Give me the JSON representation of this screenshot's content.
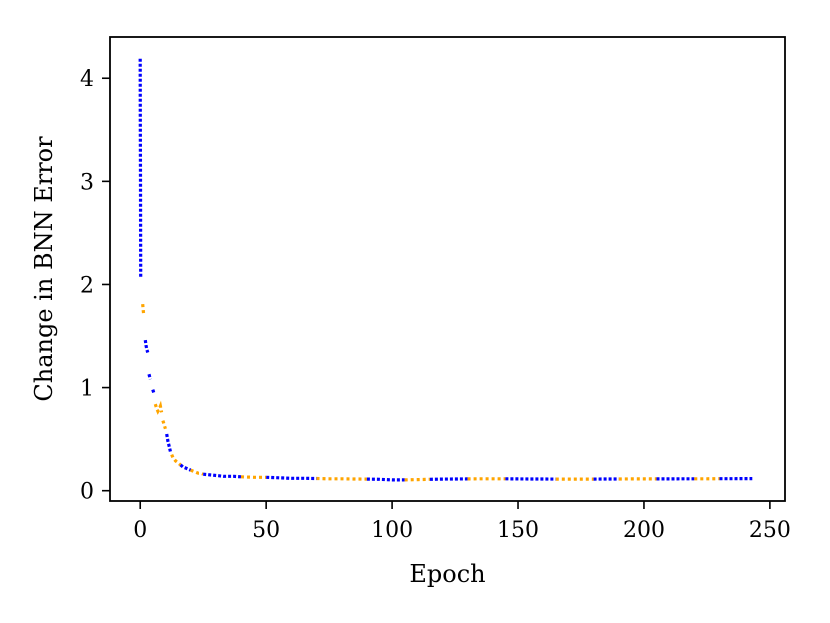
{
  "chart_data": {
    "type": "line",
    "title": "",
    "xlabel": "Epoch",
    "ylabel": "Change in BNN Error",
    "xlim": [
      -12,
      256
    ],
    "ylim": [
      -0.1,
      4.4
    ],
    "xticks": [
      0,
      50,
      100,
      150,
      200,
      250
    ],
    "yticks": [
      0,
      1,
      2,
      3,
      4
    ],
    "grid": false,
    "legend": "none",
    "colors": {
      "blue": "#0000ff",
      "orange": "#ffa500"
    },
    "segments": [
      {
        "color": "blue",
        "x": [
          0,
          0.05,
          0.1,
          0.15,
          0.2
        ],
        "y": [
          4.19,
          3.6,
          3.0,
          2.5,
          2.07
        ]
      },
      {
        "color": "orange",
        "x": [
          1.0,
          1.2,
          1.4
        ],
        "y": [
          1.81,
          1.75,
          1.7
        ]
      },
      {
        "color": "blue",
        "x": [
          2,
          2.3,
          2.6,
          3.0
        ],
        "y": [
          1.46,
          1.41,
          1.37,
          1.34
        ]
      },
      {
        "color": "blue",
        "x": [
          3.5,
          4.0
        ],
        "y": [
          1.13,
          1.08
        ]
      },
      {
        "color": "blue",
        "x": [
          5.0,
          5.5
        ],
        "y": [
          0.98,
          0.94
        ]
      },
      {
        "color": "orange",
        "x": [
          6,
          6.5,
          7,
          7.5,
          8,
          8.5
        ],
        "y": [
          0.84,
          0.8,
          0.77,
          0.79,
          0.82,
          0.76
        ]
      },
      {
        "color": "orange",
        "x": [
          9,
          10
        ],
        "y": [
          0.68,
          0.6
        ]
      },
      {
        "color": "blue",
        "x": [
          10.5,
          11,
          11.5,
          12
        ],
        "y": [
          0.55,
          0.48,
          0.43,
          0.38
        ]
      },
      {
        "color": "orange",
        "x": [
          12.5,
          13,
          14,
          15,
          16
        ],
        "y": [
          0.35,
          0.32,
          0.29,
          0.27,
          0.25
        ]
      },
      {
        "color": "blue",
        "x": [
          16,
          17,
          18,
          19,
          20
        ],
        "y": [
          0.25,
          0.23,
          0.22,
          0.21,
          0.2
        ]
      },
      {
        "color": "orange",
        "x": [
          20,
          21,
          22,
          23,
          24,
          25
        ],
        "y": [
          0.2,
          0.19,
          0.18,
          0.17,
          0.17,
          0.16
        ]
      },
      {
        "color": "blue",
        "x": [
          25,
          27,
          29,
          31,
          33,
          35,
          37,
          40
        ],
        "y": [
          0.16,
          0.155,
          0.15,
          0.145,
          0.14,
          0.14,
          0.14,
          0.135
        ]
      },
      {
        "color": "orange",
        "x": [
          40,
          45,
          50
        ],
        "y": [
          0.135,
          0.13,
          0.13
        ]
      },
      {
        "color": "blue",
        "x": [
          50,
          55,
          60,
          65,
          70
        ],
        "y": [
          0.13,
          0.125,
          0.12,
          0.12,
          0.118
        ]
      },
      {
        "color": "orange",
        "x": [
          70,
          75,
          80,
          85,
          90
        ],
        "y": [
          0.118,
          0.115,
          0.115,
          0.113,
          0.112
        ]
      },
      {
        "color": "blue",
        "x": [
          90,
          95,
          100,
          105
        ],
        "y": [
          0.112,
          0.11,
          0.105,
          0.105
        ]
      },
      {
        "color": "orange",
        "x": [
          105,
          110,
          115
        ],
        "y": [
          0.105,
          0.108,
          0.11
        ]
      },
      {
        "color": "blue",
        "x": [
          115,
          120,
          125,
          130
        ],
        "y": [
          0.11,
          0.112,
          0.113,
          0.114
        ]
      },
      {
        "color": "orange",
        "x": [
          130,
          135,
          140,
          145
        ],
        "y": [
          0.114,
          0.115,
          0.115,
          0.115
        ]
      },
      {
        "color": "blue",
        "x": [
          145,
          150,
          155,
          160,
          165
        ],
        "y": [
          0.115,
          0.114,
          0.113,
          0.113,
          0.112
        ]
      },
      {
        "color": "orange",
        "x": [
          165,
          170,
          175,
          180
        ],
        "y": [
          0.112,
          0.112,
          0.112,
          0.112
        ]
      },
      {
        "color": "blue",
        "x": [
          180,
          185,
          190
        ],
        "y": [
          0.112,
          0.113,
          0.113
        ]
      },
      {
        "color": "orange",
        "x": [
          190,
          195,
          200,
          205
        ],
        "y": [
          0.113,
          0.114,
          0.114,
          0.114
        ]
      },
      {
        "color": "blue",
        "x": [
          205,
          210,
          215,
          220
        ],
        "y": [
          0.114,
          0.114,
          0.115,
          0.115
        ]
      },
      {
        "color": "orange",
        "x": [
          220,
          225,
          230
        ],
        "y": [
          0.115,
          0.115,
          0.116
        ]
      },
      {
        "color": "blue",
        "x": [
          230,
          235,
          240,
          243
        ],
        "y": [
          0.116,
          0.116,
          0.117,
          0.117
        ]
      }
    ]
  }
}
